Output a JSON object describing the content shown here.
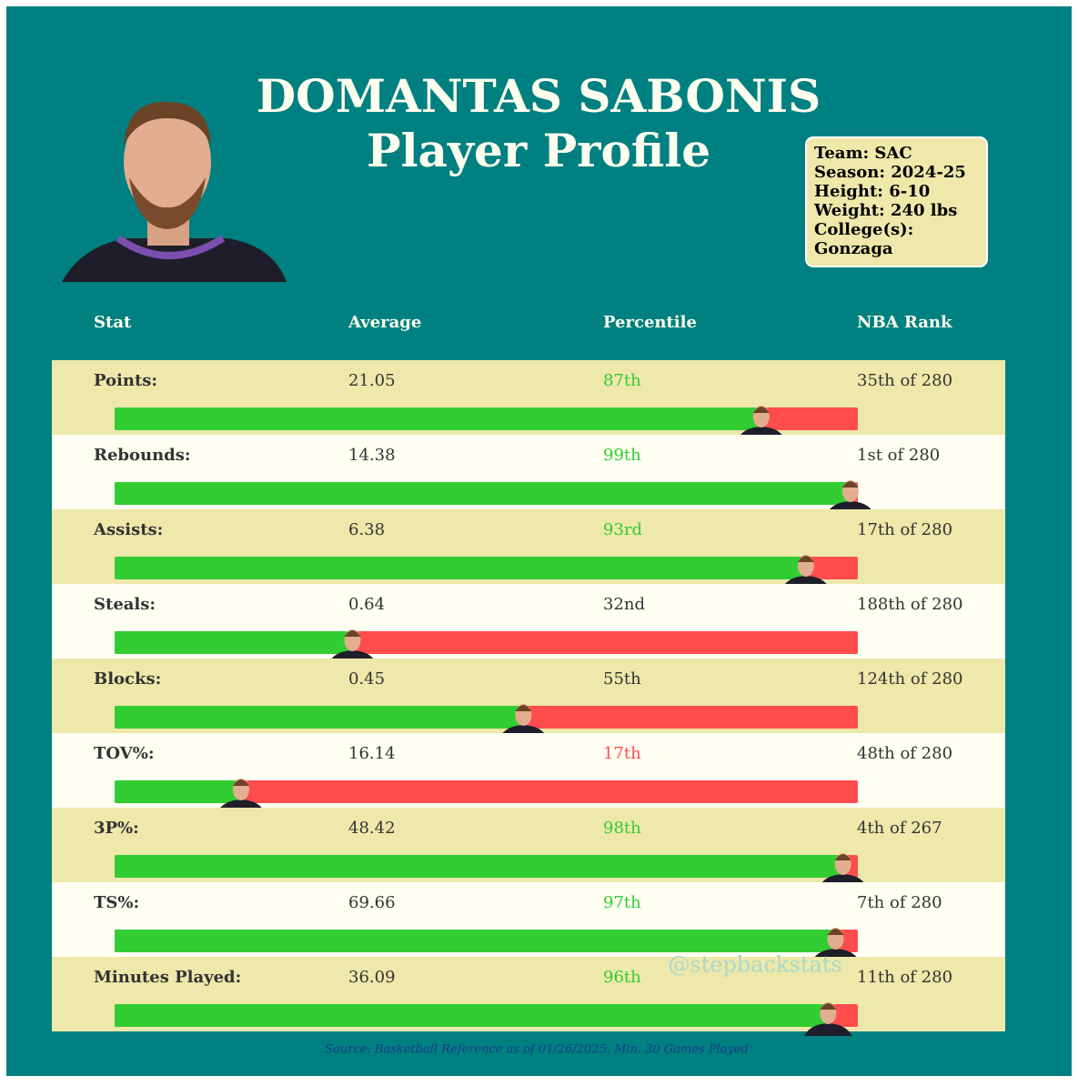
{
  "header": {
    "title": "DOMANTAS SABONIS",
    "subtitle": "Player Profile"
  },
  "info": [
    "Team: SAC",
    "Season: 2024-25",
    "Height: 6-10",
    "Weight: 240 lbs",
    "College(s):",
    "Gonzaga"
  ],
  "table": {
    "columns": [
      "Stat",
      "Average",
      "Percentile",
      "NBA Rank"
    ],
    "rows": [
      {
        "stat": "Points:",
        "average": 21.05,
        "percentile": {
          "value": 87,
          "label": "87th"
        },
        "rank": "35th of 280",
        "percentile_color": "#32cd32"
      },
      {
        "stat": "Rebounds:",
        "average": 14.38,
        "percentile": {
          "value": 99,
          "label": "99th"
        },
        "rank": "1st of 280",
        "percentile_color": "#32cd32"
      },
      {
        "stat": "Assists:",
        "average": 6.38,
        "percentile": {
          "value": 93,
          "label": "93rd"
        },
        "rank": "17th of 280",
        "percentile_color": "#32cd32"
      },
      {
        "stat": "Steals:",
        "average": 0.64,
        "percentile": {
          "value": 32,
          "label": "32nd"
        },
        "rank": "188th of 280",
        "percentile_color": "#333333"
      },
      {
        "stat": "Blocks:",
        "average": 0.45,
        "percentile": {
          "value": 55,
          "label": "55th"
        },
        "rank": "124th of 280",
        "percentile_color": "#333333"
      },
      {
        "stat": "TOV%:",
        "average": 16.14,
        "percentile": {
          "value": 17,
          "label": "17th"
        },
        "rank": "48th of 280",
        "percentile_color": "#ff4c4c"
      },
      {
        "stat": "3P%:",
        "average": 48.42,
        "percentile": {
          "value": 98,
          "label": "98th"
        },
        "rank": "4th of 267",
        "percentile_color": "#32cd32"
      },
      {
        "stat": "TS%:",
        "average": 69.66,
        "percentile": {
          "value": 97,
          "label": "97th"
        },
        "rank": "7th of 280",
        "percentile_color": "#32cd32"
      },
      {
        "stat": "Minutes Played:",
        "average": 36.09,
        "percentile": {
          "value": 96,
          "label": "96th"
        },
        "rank": "11th of 280",
        "percentile_color": "#32cd32"
      }
    ]
  },
  "bar": {
    "xlim": [
      0,
      100
    ],
    "filled_color": "#32cd32",
    "rest_color": "#ff4c4c",
    "row_colors": [
      "#eee8aa",
      "#fffff2"
    ]
  },
  "watermark": "@stepbackstats",
  "source": "Source: Basketball Reference as of 01/26/2025. Min. 30 Games Played"
}
